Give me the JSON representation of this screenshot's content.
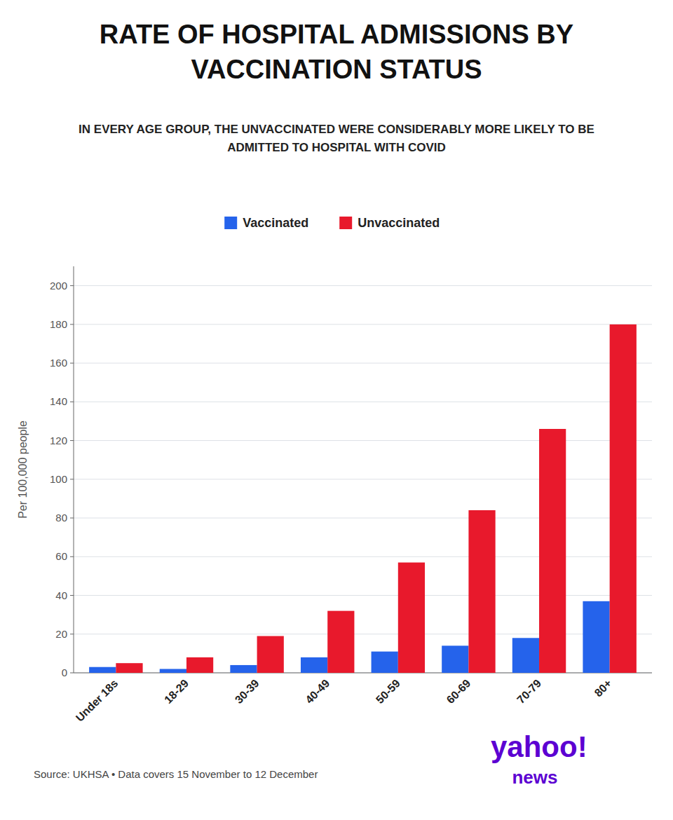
{
  "chart_data": {
    "type": "bar",
    "title": "RATE OF HOSPITAL ADMISSIONS BY\nVACCINATION STATUS",
    "subtitle": "IN EVERY AGE GROUP, THE UNVACCINATED WERE CONSIDERABLY MORE LIKELY TO BE\nADMITTED TO HOSPITAL WITH COVID",
    "categories": [
      "Under 18s",
      "18-29",
      "30-39",
      "40-49",
      "50-59",
      "60-69",
      "70-79",
      "80+"
    ],
    "series": [
      {
        "name": "Vaccinated",
        "color": "#2563eb",
        "values": [
          3,
          2,
          4,
          8,
          11,
          14,
          18,
          37
        ]
      },
      {
        "name": "Unvaccinated",
        "color": "#e8192c",
        "values": [
          5,
          8,
          19,
          32,
          57,
          84,
          126,
          180
        ]
      }
    ],
    "y_label": "Per 100,000 people",
    "ylim": [
      0,
      210
    ],
    "yticks": [
      0,
      20,
      40,
      60,
      80,
      100,
      120,
      140,
      160,
      180,
      200
    ],
    "grid": true,
    "legend": "top",
    "annotations": [
      {
        "text": "Source: UKHSA • Data covers 15 November to 12 December"
      },
      {
        "text": "yahoo!",
        "color": "#5c00d2"
      },
      {
        "text": "news",
        "color": "#5c00d2"
      }
    ]
  }
}
